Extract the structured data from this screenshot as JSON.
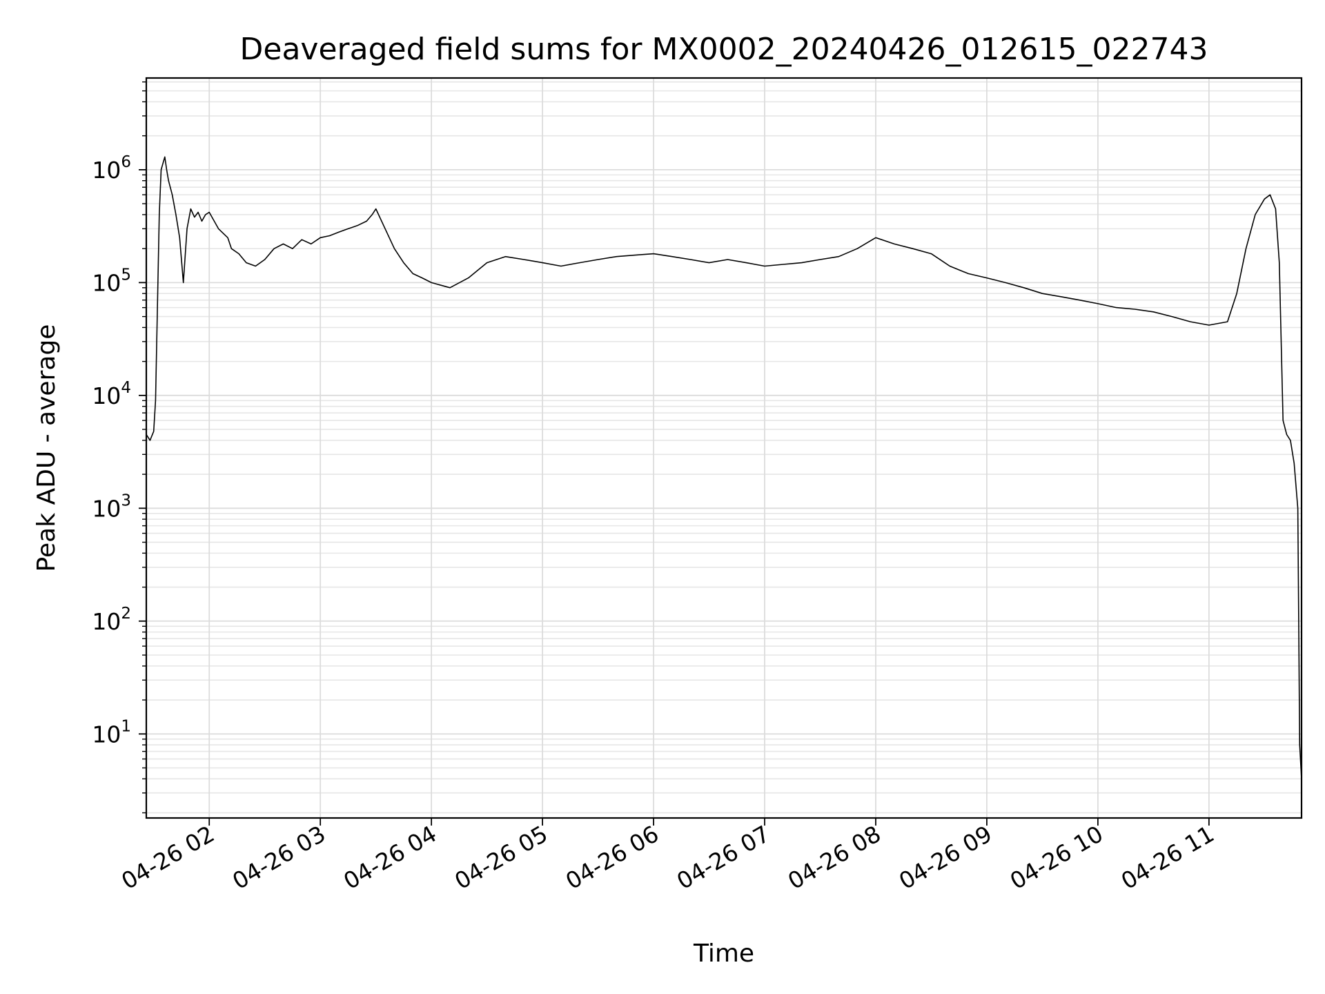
{
  "chart_data": {
    "type": "line",
    "title": "Deaveraged field sums for MX0002_20240426_012615_022743",
    "xlabel": "Time",
    "ylabel": "Peak ADU - average",
    "y_scale": "log",
    "ylim": [
      1.8,
      6500000
    ],
    "xlim": [
      "2024-04-26 01:26",
      "2024-04-26 11:50"
    ],
    "grid": true,
    "legend": "none",
    "line_color": "#000000",
    "x_ticks": [
      {
        "value": "2024-04-26 02:00",
        "label": "04-26 02"
      },
      {
        "value": "2024-04-26 03:00",
        "label": "04-26 03"
      },
      {
        "value": "2024-04-26 04:00",
        "label": "04-26 04"
      },
      {
        "value": "2024-04-26 05:00",
        "label": "04-26 05"
      },
      {
        "value": "2024-04-26 06:00",
        "label": "04-26 06"
      },
      {
        "value": "2024-04-26 07:00",
        "label": "04-26 07"
      },
      {
        "value": "2024-04-26 08:00",
        "label": "04-26 08"
      },
      {
        "value": "2024-04-26 09:00",
        "label": "04-26 09"
      },
      {
        "value": "2024-04-26 10:00",
        "label": "04-26 10"
      },
      {
        "value": "2024-04-26 11:00",
        "label": "04-26 11"
      }
    ],
    "y_ticks": [
      {
        "value": 10,
        "base": "10",
        "exp": "1"
      },
      {
        "value": 100,
        "base": "10",
        "exp": "2"
      },
      {
        "value": 1000,
        "base": "10",
        "exp": "3"
      },
      {
        "value": 10000,
        "base": "10",
        "exp": "4"
      },
      {
        "value": 100000,
        "base": "10",
        "exp": "5"
      },
      {
        "value": 1000000,
        "base": "10",
        "exp": "6"
      }
    ],
    "series": [
      {
        "x": [
          "2024-04-26 01:26",
          "2024-04-26 01:28",
          "2024-04-26 01:30",
          "2024-04-26 01:31",
          "2024-04-26 01:32",
          "2024-04-26 01:33",
          "2024-04-26 01:34",
          "2024-04-26 01:36",
          "2024-04-26 01:37",
          "2024-04-26 01:38",
          "2024-04-26 01:40",
          "2024-04-26 01:42",
          "2024-04-26 01:44",
          "2024-04-26 01:46",
          "2024-04-26 01:48",
          "2024-04-26 01:50",
          "2024-04-26 01:52",
          "2024-04-26 01:54",
          "2024-04-26 01:56",
          "2024-04-26 01:58",
          "2024-04-26 02:00",
          "2024-04-26 02:05",
          "2024-04-26 02:10",
          "2024-04-26 02:12",
          "2024-04-26 02:16",
          "2024-04-26 02:20",
          "2024-04-26 02:25",
          "2024-04-26 02:30",
          "2024-04-26 02:35",
          "2024-04-26 02:40",
          "2024-04-26 02:45",
          "2024-04-26 02:50",
          "2024-04-26 02:55",
          "2024-04-26 03:00",
          "2024-04-26 03:05",
          "2024-04-26 03:10",
          "2024-04-26 03:15",
          "2024-04-26 03:20",
          "2024-04-26 03:25",
          "2024-04-26 03:28",
          "2024-04-26 03:30",
          "2024-04-26 03:35",
          "2024-04-26 03:40",
          "2024-04-26 03:45",
          "2024-04-26 03:50",
          "2024-04-26 03:55",
          "2024-04-26 04:00",
          "2024-04-26 04:10",
          "2024-04-26 04:20",
          "2024-04-26 04:30",
          "2024-04-26 04:40",
          "2024-04-26 04:50",
          "2024-04-26 05:00",
          "2024-04-26 05:10",
          "2024-04-26 05:20",
          "2024-04-26 05:30",
          "2024-04-26 05:40",
          "2024-04-26 05:50",
          "2024-04-26 06:00",
          "2024-04-26 06:10",
          "2024-04-26 06:20",
          "2024-04-26 06:30",
          "2024-04-26 06:40",
          "2024-04-26 06:50",
          "2024-04-26 07:00",
          "2024-04-26 07:10",
          "2024-04-26 07:20",
          "2024-04-26 07:30",
          "2024-04-26 07:40",
          "2024-04-26 07:50",
          "2024-04-26 08:00",
          "2024-04-26 08:10",
          "2024-04-26 08:20",
          "2024-04-26 08:30",
          "2024-04-26 08:40",
          "2024-04-26 08:50",
          "2024-04-26 09:00",
          "2024-04-26 09:10",
          "2024-04-26 09:20",
          "2024-04-26 09:30",
          "2024-04-26 09:40",
          "2024-04-26 09:50",
          "2024-04-26 10:00",
          "2024-04-26 10:10",
          "2024-04-26 10:20",
          "2024-04-26 10:30",
          "2024-04-26 10:40",
          "2024-04-26 10:50",
          "2024-04-26 11:00",
          "2024-04-26 11:10",
          "2024-04-26 11:15",
          "2024-04-26 11:20",
          "2024-04-26 11:25",
          "2024-04-26 11:30",
          "2024-04-26 11:33",
          "2024-04-26 11:36",
          "2024-04-26 11:38",
          "2024-04-26 11:40",
          "2024-04-26 11:42",
          "2024-04-26 11:44",
          "2024-04-26 11:46",
          "2024-04-26 11:48",
          "2024-04-26 11:49",
          "2024-04-26 11:50"
        ],
        "y": [
          4500,
          4000,
          4800,
          9000,
          60000,
          400000,
          1000000,
          1300000,
          1000000,
          800000,
          600000,
          400000,
          250000,
          100000,
          300000,
          450000,
          380000,
          420000,
          350000,
          400000,
          420000,
          300000,
          250000,
          200000,
          180000,
          150000,
          140000,
          160000,
          200000,
          220000,
          200000,
          240000,
          220000,
          250000,
          260000,
          280000,
          300000,
          320000,
          350000,
          400000,
          450000,
          300000,
          200000,
          150000,
          120000,
          110000,
          100000,
          90000,
          110000,
          150000,
          170000,
          160000,
          150000,
          140000,
          150000,
          160000,
          170000,
          175000,
          180000,
          170000,
          160000,
          150000,
          160000,
          150000,
          140000,
          145000,
          150000,
          160000,
          170000,
          200000,
          250000,
          220000,
          200000,
          180000,
          140000,
          120000,
          110000,
          100000,
          90000,
          80000,
          75000,
          70000,
          65000,
          60000,
          58000,
          55000,
          50000,
          45000,
          42000,
          45000,
          80000,
          200000,
          400000,
          550000,
          600000,
          450000,
          150000,
          6000,
          4500,
          4000,
          2500,
          1000,
          8,
          4
        ]
      }
    ]
  }
}
